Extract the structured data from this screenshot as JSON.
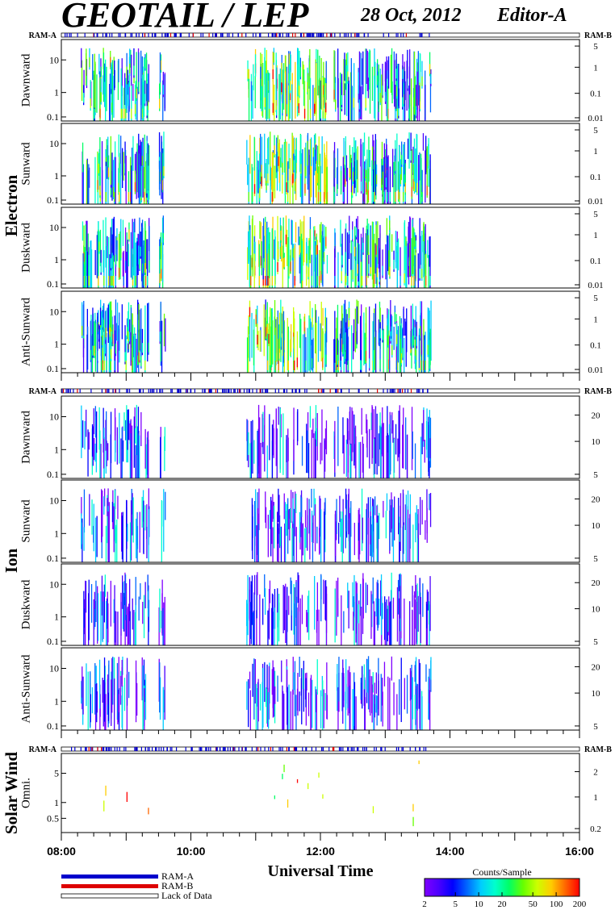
{
  "header": {
    "title": "GEOTAIL / LEP",
    "date": "28 Oct, 2012",
    "editor": "Editor-A"
  },
  "colors": {
    "ram_a": "#0000cc",
    "ram_b": "#dd0000",
    "colormap": [
      "#7f00ff",
      "#4b00ff",
      "#0000ff",
      "#0066ff",
      "#00ccff",
      "#00ffcc",
      "#00ff66",
      "#66ff00",
      "#ccff00",
      "#ffcc00",
      "#ff6600",
      "#ff0000"
    ]
  },
  "chart_data": {
    "type": "heatmap",
    "x": {
      "label": "Universal Time",
      "ticks": [
        "08:00",
        "10:00",
        "12:00",
        "14:00",
        "16:00"
      ],
      "range_hours": [
        8,
        16
      ]
    },
    "groups": [
      {
        "name": "Electron",
        "ram_left": "RAM-A",
        "ram_right": "RAM-B",
        "panels": [
          {
            "label": "Dawnward",
            "y_ticks": [
              "10",
              "1",
              "0.1"
            ],
            "right_ticks": [
              "5",
              "1",
              "0.1",
              "0.01"
            ]
          },
          {
            "label": "Sunward",
            "y_ticks": [
              "10",
              "1",
              "0.1"
            ],
            "right_ticks": [
              "5",
              "1",
              "0.1",
              "0.01"
            ]
          },
          {
            "label": "Duskward",
            "y_ticks": [
              "10",
              "1",
              "0.1"
            ],
            "right_ticks": [
              "5",
              "1",
              "0.1",
              "0.01"
            ]
          },
          {
            "label": "Anti-Sunward",
            "y_ticks": [
              "10",
              "1",
              "0.1"
            ],
            "right_ticks": [
              "5",
              "1",
              "0.1",
              "0.01"
            ]
          }
        ]
      },
      {
        "name": "Ion",
        "ram_left": "RAM-A",
        "ram_right": "RAM-B",
        "panels": [
          {
            "label": "Dawnward",
            "y_ticks": [
              "10",
              "1",
              "0.1"
            ],
            "right_ticks": [
              "20",
              "10",
              "5"
            ]
          },
          {
            "label": "Sunward",
            "y_ticks": [
              "10",
              "1",
              "0.1"
            ],
            "right_ticks": [
              "20",
              "10",
              "5"
            ]
          },
          {
            "label": "Duskward",
            "y_ticks": [
              "10",
              "1",
              "0.1"
            ],
            "right_ticks": [
              "20",
              "10",
              "5"
            ]
          },
          {
            "label": "Anti-Sunward",
            "y_ticks": [
              "10",
              "1",
              "0.1"
            ],
            "right_ticks": [
              "20",
              "10",
              "5"
            ]
          }
        ]
      },
      {
        "name": "Solar Wind",
        "ram_left": "RAM-A",
        "ram_right": "RAM-B",
        "panels": [
          {
            "label": "Omni.",
            "y_ticks": [
              "5",
              "1",
              "0.5"
            ],
            "right_ticks": [
              "2",
              "1",
              "0.2"
            ]
          }
        ]
      }
    ],
    "activity_intervals_hours": [
      [
        8.3,
        9.35
      ],
      [
        9.5,
        9.6
      ],
      [
        10.85,
        12.1
      ],
      [
        12.2,
        13.7
      ]
    ],
    "colorbar": {
      "title": "Counts/Sample",
      "ticks": [
        "2",
        "5",
        "10",
        "20",
        "50",
        "100",
        "200"
      ]
    }
  },
  "legend": {
    "items": [
      {
        "label": "RAM-A",
        "kind": "ram-a"
      },
      {
        "label": "RAM-B",
        "kind": "ram-b"
      },
      {
        "label": "Lack of Data",
        "kind": "lack"
      }
    ]
  }
}
